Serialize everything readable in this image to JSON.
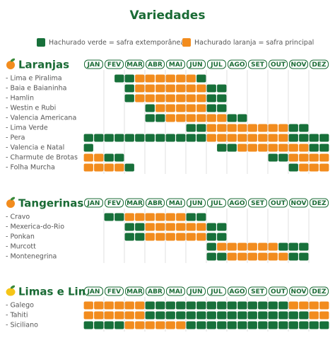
{
  "title": "Variedades",
  "legend": [
    {
      "label": "Hachurado verde = safra extemporânea",
      "color": "#17703a"
    },
    {
      "label": "Hachurado laranja = safra principal",
      "color": "#f28c1e"
    }
  ],
  "months": [
    "JAN",
    "FEV",
    "MAR",
    "ABR",
    "MAI",
    "JUN",
    "JUL",
    "AGO",
    "SET",
    "OUT",
    "NOV",
    "DEZ"
  ],
  "sections": [
    {
      "name": "Laranjas",
      "icon": "orange",
      "rows": [
        {
          "label": "- Lima e Piralima",
          "segments": [
            {
              "from": 1.5,
              "to": 2.5,
              "legend": 0
            },
            {
              "from": 2.5,
              "to": 5.5,
              "legend": 1
            },
            {
              "from": 5.5,
              "to": 6,
              "legend": 0
            }
          ]
        },
        {
          "label": "- Baia e Baianinha",
          "segments": [
            {
              "from": 2,
              "to": 2.5,
              "legend": 0
            },
            {
              "from": 2.5,
              "to": 6,
              "legend": 1
            },
            {
              "from": 6,
              "to": 7,
              "legend": 0
            }
          ]
        },
        {
          "label": "- Hamlin",
          "segments": [
            {
              "from": 2,
              "to": 2.5,
              "legend": 0
            },
            {
              "from": 2.5,
              "to": 6,
              "legend": 1
            },
            {
              "from": 6,
              "to": 7,
              "legend": 0
            }
          ]
        },
        {
          "label": "- Westin e Rubi",
          "segments": [
            {
              "from": 3,
              "to": 3.5,
              "legend": 0
            },
            {
              "from": 3.5,
              "to": 6,
              "legend": 1
            },
            {
              "from": 6,
              "to": 7,
              "legend": 0
            }
          ]
        },
        {
          "label": "- Valencia Americana",
          "segments": [
            {
              "from": 3,
              "to": 4,
              "legend": 0
            },
            {
              "from": 4,
              "to": 7,
              "legend": 1
            },
            {
              "from": 7,
              "to": 8,
              "legend": 0
            }
          ]
        },
        {
          "label": "- Lima Verde",
          "segments": [
            {
              "from": 5,
              "to": 6,
              "legend": 0
            },
            {
              "from": 6,
              "to": 10,
              "legend": 1
            },
            {
              "from": 10,
              "to": 11,
              "legend": 0
            }
          ]
        },
        {
          "label": "- Pera",
          "segments": [
            {
              "from": 0,
              "to": 6,
              "legend": 0
            },
            {
              "from": 6,
              "to": 10,
              "legend": 1
            },
            {
              "from": 10,
              "to": 12,
              "legend": 0
            }
          ]
        },
        {
          "label": "- Valencia e Natal",
          "segments": [
            {
              "from": 0,
              "to": 0.5,
              "legend": 0
            },
            {
              "from": 6.5,
              "to": 7.5,
              "legend": 0
            },
            {
              "from": 7.5,
              "to": 11,
              "legend": 1
            },
            {
              "from": 11,
              "to": 12,
              "legend": 0
            }
          ]
        },
        {
          "label": "- Charmute de Brotas",
          "segments": [
            {
              "from": 0,
              "to": 1,
              "legend": 1
            },
            {
              "from": 1,
              "to": 2,
              "legend": 0
            },
            {
              "from": 9,
              "to": 10,
              "legend": 0
            },
            {
              "from": 10,
              "to": 12,
              "legend": 1
            }
          ]
        },
        {
          "label": "- Folha Murcha",
          "segments": [
            {
              "from": 0,
              "to": 2,
              "legend": 1
            },
            {
              "from": 2,
              "to": 2.5,
              "legend": 0
            },
            {
              "from": 10,
              "to": 10.5,
              "legend": 0
            },
            {
              "from": 10.5,
              "to": 12,
              "legend": 1
            }
          ]
        }
      ]
    },
    {
      "name": "Tangerinas",
      "icon": "orange",
      "rows": [
        {
          "label": "- Cravo",
          "segments": [
            {
              "from": 1,
              "to": 2,
              "legend": 0
            },
            {
              "from": 2,
              "to": 5,
              "legend": 1
            },
            {
              "from": 5,
              "to": 6,
              "legend": 0
            }
          ]
        },
        {
          "label": "- Mexerica-do-Rio",
          "segments": [
            {
              "from": 2,
              "to": 3,
              "legend": 0
            },
            {
              "from": 3,
              "to": 6,
              "legend": 1
            },
            {
              "from": 6,
              "to": 7,
              "legend": 0
            }
          ]
        },
        {
          "label": "- Ponkan",
          "segments": [
            {
              "from": 2,
              "to": 3,
              "legend": 0
            },
            {
              "from": 3,
              "to": 6,
              "legend": 1
            },
            {
              "from": 6,
              "to": 7,
              "legend": 0
            }
          ]
        },
        {
          "label": "- Murcott",
          "segments": [
            {
              "from": 6,
              "to": 6.5,
              "legend": 0
            },
            {
              "from": 6.5,
              "to": 9.5,
              "legend": 1
            },
            {
              "from": 9.5,
              "to": 11,
              "legend": 0
            }
          ]
        },
        {
          "label": "- Montenegrina",
          "segments": [
            {
              "from": 6,
              "to": 7,
              "legend": 0
            },
            {
              "from": 7,
              "to": 10,
              "legend": 1
            },
            {
              "from": 10,
              "to": 11,
              "legend": 0
            }
          ]
        }
      ]
    },
    {
      "name": "Limas e Limão",
      "icon": "lemon",
      "rows": [
        {
          "label": "- Galego",
          "segments": [
            {
              "from": 0,
              "to": 3,
              "legend": 1
            },
            {
              "from": 3,
              "to": 10,
              "legend": 0
            },
            {
              "from": 10,
              "to": 12,
              "legend": 1
            }
          ]
        },
        {
          "label": "- Tahiti",
          "segments": [
            {
              "from": 0,
              "to": 3,
              "legend": 1
            },
            {
              "from": 3,
              "to": 11,
              "legend": 0
            },
            {
              "from": 11,
              "to": 12,
              "legend": 1
            }
          ]
        },
        {
          "label": "- Siciliano",
          "segments": [
            {
              "from": 0,
              "to": 2,
              "legend": 0
            },
            {
              "from": 2,
              "to": 5,
              "legend": 1
            },
            {
              "from": 5,
              "to": 12,
              "legend": 0
            }
          ]
        }
      ]
    }
  ]
}
